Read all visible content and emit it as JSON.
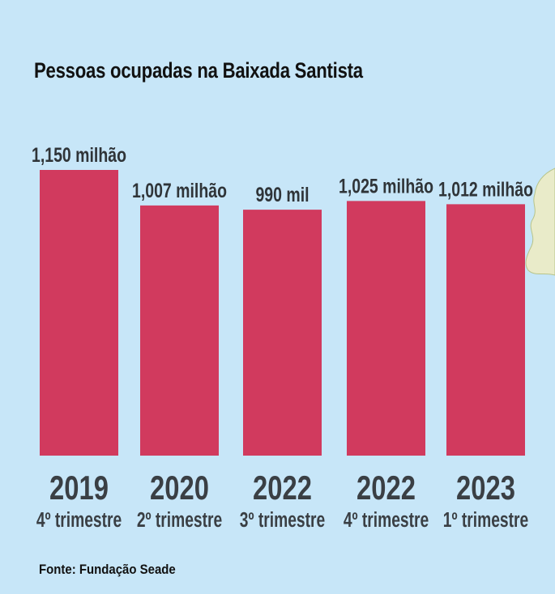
{
  "title": "Pessoas ocupadas na Baixada Santista",
  "source": "Fonte: Fundação Seade",
  "colors": {
    "background": "#c7e6f8",
    "bar": "#d13a5e",
    "text": "#3a3f44",
    "land": "#e9ebc9"
  },
  "chart_data": {
    "type": "bar",
    "title": "Pessoas ocupadas na Baixada Santista",
    "xlabel": "",
    "ylabel": "",
    "categories": [
      {
        "year": "2019",
        "quarter": "4º trimestre"
      },
      {
        "year": "2020",
        "quarter": "2º trimestre"
      },
      {
        "year": "2022",
        "quarter": "3º trimestre"
      },
      {
        "year": "2022",
        "quarter": "4º trimestre"
      },
      {
        "year": "2023",
        "quarter": "1º trimestre"
      }
    ],
    "values": [
      1150000,
      1007000,
      990000,
      1025000,
      1012000
    ],
    "value_labels": [
      "1,150 milhão",
      "1,007 milhão",
      "990 mil",
      "1,025 milhão",
      "1,012 milhão"
    ],
    "grid": false,
    "legend": "none"
  }
}
